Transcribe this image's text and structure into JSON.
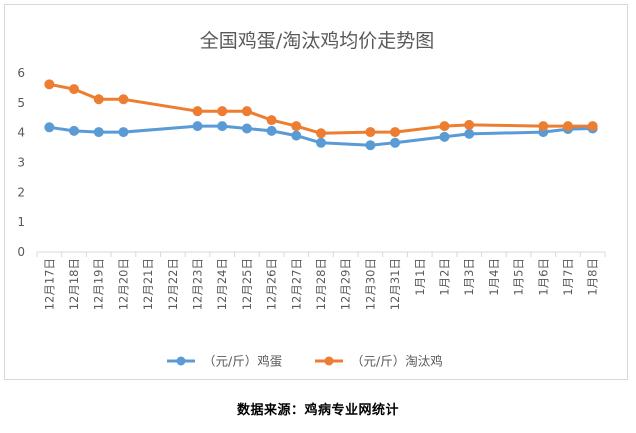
{
  "chart_data": {
    "type": "line",
    "title": "全国鸡蛋/淘汰鸡均价走势图",
    "categories": [
      "12月17日",
      "12月18日",
      "12月19日",
      "12月20日",
      "12月21日",
      "12月22日",
      "12月23日",
      "12月24日",
      "12月25日",
      "12月26日",
      "12月27日",
      "12月28日",
      "12月29日",
      "12月30日",
      "12月31日",
      "1月1日",
      "1月2日",
      "1月3日",
      "1月4日",
      "1月5日",
      "1月6日",
      "1月7日",
      "1月8日"
    ],
    "series": [
      {
        "name": "（元/斤）鸡蛋",
        "color": "#5B9BD5",
        "values": [
          4.18,
          4.06,
          4.02,
          4.02,
          null,
          null,
          4.22,
          4.22,
          4.14,
          4.06,
          3.9,
          3.66,
          null,
          3.58,
          3.66,
          null,
          3.86,
          3.96,
          null,
          null,
          4.02,
          4.12,
          4.14
        ]
      },
      {
        "name": "（元/斤）淘汰鸡",
        "color": "#ED7D31",
        "values": [
          5.62,
          5.46,
          5.12,
          5.12,
          null,
          null,
          4.72,
          4.72,
          4.72,
          4.42,
          4.22,
          3.98,
          null,
          4.02,
          4.02,
          null,
          4.22,
          4.26,
          null,
          null,
          4.22,
          4.22,
          4.22
        ]
      }
    ],
    "ylim": [
      0,
      6
    ],
    "yticks": [
      0,
      1,
      2,
      3,
      4,
      5,
      6
    ],
    "grid": false,
    "legend_position": "bottom"
  },
  "source": "数据来源：鸡病专业网统计"
}
